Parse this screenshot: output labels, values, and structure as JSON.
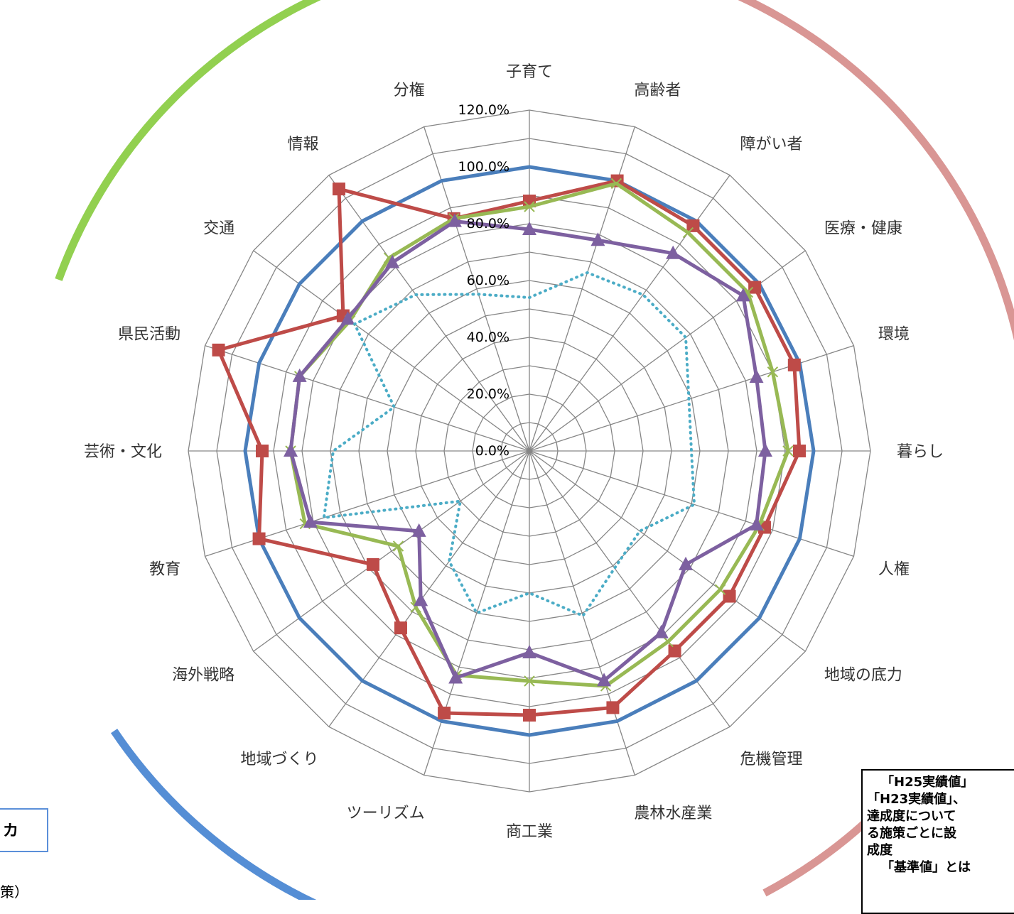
{
  "chart_data": {
    "type": "radar",
    "categories": [
      "子育て",
      "高齢者",
      "障がい者",
      "医療・健康",
      "環境",
      "暮らし",
      "人権",
      "地域の底力",
      "危機管理",
      "農林水産業",
      "商工業",
      "ツーリズム",
      "地域づくり",
      "海外戦略",
      "教育",
      "芸術・文化",
      "県民活動",
      "交通",
      "情報",
      "分権"
    ],
    "ticks": [
      "0.0%",
      "20.0%",
      "40.0%",
      "60.0%",
      "80.0%",
      "100.0%",
      "120.0%"
    ],
    "rmax": 120,
    "series": [
      {
        "color": "#4a7ebb",
        "marker": "none",
        "dash": false,
        "values": [
          100,
          100,
          100,
          100,
          100,
          100,
          100,
          100,
          100,
          100,
          100,
          100,
          100,
          100,
          100,
          100,
          100,
          100,
          100,
          100
        ]
      },
      {
        "color": "#be4b48",
        "marker": "square",
        "dash": false,
        "values": [
          88,
          100,
          98,
          98,
          98,
          95,
          87,
          87,
          87,
          95,
          93,
          97,
          77,
          68,
          100,
          94,
          115,
          81,
          114,
          86
        ]
      },
      {
        "color": "#98b954",
        "marker": "x",
        "dash": false,
        "values": [
          86,
          99,
          95,
          95,
          90,
          91,
          85,
          83,
          83,
          87,
          81,
          83,
          68,
          57,
          83,
          84,
          85,
          78,
          84,
          86
        ]
      },
      {
        "color": "#7d60a0",
        "marker": "triangle",
        "dash": false,
        "values": [
          78,
          78,
          86,
          93,
          84,
          83,
          84,
          68,
          79,
          85,
          71,
          84,
          65,
          48,
          81,
          84,
          85,
          79,
          82,
          85
        ]
      },
      {
        "color": "#4bacc6",
        "marker": "none",
        "dash": true,
        "values": [
          54,
          66,
          68,
          68,
          59,
          57,
          61,
          48,
          51,
          61,
          50,
          60,
          48,
          30,
          76,
          69,
          50,
          76,
          68,
          58
        ]
      }
    ]
  },
  "decor": {
    "arc_green": "#92d050",
    "arc_pink": "#d99694",
    "arc_blue": "#558ed5"
  },
  "notes": {
    "lines": [
      "「H25実績値」",
      "「H23実績値」、",
      "達成度について",
      "る施策ごとに設",
      "成度",
      "「基準値」とは"
    ],
    "left_box_text": "カ",
    "left_sub_text": "策）"
  }
}
